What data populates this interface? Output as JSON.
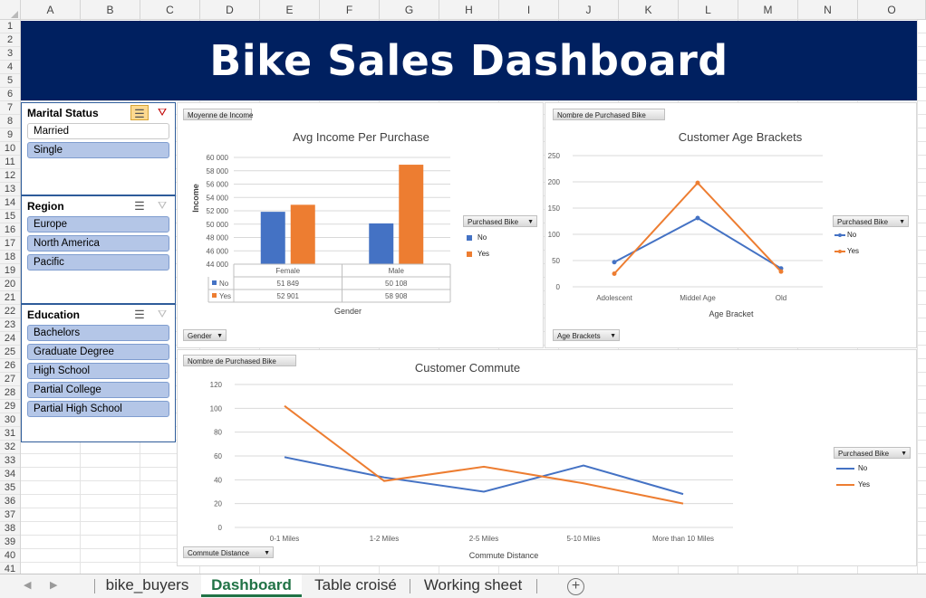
{
  "columns": [
    "A",
    "B",
    "C",
    "D",
    "E",
    "F",
    "G",
    "H",
    "I",
    "J",
    "K",
    "L",
    "M",
    "N",
    "O"
  ],
  "rows": [
    "1",
    "2",
    "3",
    "4",
    "5",
    "6",
    "7",
    "8",
    "9",
    "10",
    "11",
    "12",
    "13",
    "14",
    "15",
    "16",
    "17",
    "18",
    "19",
    "20",
    "21",
    "22",
    "23",
    "24",
    "25",
    "26",
    "27",
    "28",
    "29",
    "30",
    "31",
    "32",
    "33",
    "34",
    "35",
    "36",
    "37",
    "38",
    "39",
    "40",
    "41"
  ],
  "banner": {
    "title": "Bike Sales Dashboard",
    "bg_color": "#002060"
  },
  "slicers": [
    {
      "title": "Marital Status",
      "multi_select_active": true,
      "clear_active": true,
      "items": [
        {
          "label": "Married",
          "selected": false
        },
        {
          "label": "Single",
          "selected": true
        }
      ]
    },
    {
      "title": "Region",
      "multi_select_active": false,
      "clear_active": false,
      "items": [
        {
          "label": "Europe",
          "selected": true
        },
        {
          "label": "North America",
          "selected": true
        },
        {
          "label": "Pacific",
          "selected": true
        }
      ]
    },
    {
      "title": "Education",
      "multi_select_active": false,
      "clear_active": false,
      "items": [
        {
          "label": "Bachelors",
          "selected": true
        },
        {
          "label": "Graduate Degree",
          "selected": true
        },
        {
          "label": "High School",
          "selected": true
        },
        {
          "label": "Partial College",
          "selected": true
        },
        {
          "label": "Partial High School",
          "selected": true
        }
      ]
    }
  ],
  "colors": {
    "no": "#4472c4",
    "yes": "#ed7d31"
  },
  "chart_data": [
    {
      "type": "bar",
      "title": "Avg Income Per Purchase",
      "value_field_button": "Moyenne de Income",
      "axis_field_button": "Gender",
      "legend_field_button": "Purchased Bike",
      "xlabel": "Gender",
      "ylabel": "Income",
      "ylim": [
        44000,
        60000
      ],
      "yticks": [
        "44 000",
        "46 000",
        "48 000",
        "50 000",
        "52 000",
        "54 000",
        "56 000",
        "58 000",
        "60 000"
      ],
      "categories": [
        "Female",
        "Male"
      ],
      "series": [
        {
          "name": "No",
          "values": [
            51849,
            50108
          ],
          "labels": [
            "51 849",
            "50 108"
          ]
        },
        {
          "name": "Yes",
          "values": [
            52901,
            58908
          ],
          "labels": [
            "52 901",
            "58 908"
          ]
        }
      ],
      "data_table": true,
      "legend_placement": "right"
    },
    {
      "type": "line",
      "title": "Customer Age Brackets",
      "value_field_button": "Nombre de Purchased Bike",
      "axis_field_button": "Age Brackets",
      "legend_field_button": "Purchased Bike",
      "xlabel": "Age Bracket",
      "ylabel": "",
      "ylim": [
        0,
        250
      ],
      "yticks": [
        "0",
        "50",
        "100",
        "150",
        "200",
        "250"
      ],
      "categories": [
        "Adolescent",
        "Middel Age",
        "Old"
      ],
      "series": [
        {
          "name": "No",
          "values": [
            47,
            131,
            35
          ]
        },
        {
          "name": "Yes",
          "values": [
            25,
            198,
            29
          ]
        }
      ],
      "markers": true,
      "legend_placement": "right"
    },
    {
      "type": "line",
      "title": "Customer Commute",
      "value_field_button": "Nombre de Purchased Bike",
      "axis_field_button": "Commute Distance",
      "legend_field_button": "Purchased Bike",
      "xlabel": "Commute Distance",
      "ylabel": "",
      "ylim": [
        0,
        120
      ],
      "yticks": [
        "0",
        "20",
        "40",
        "60",
        "80",
        "100",
        "120"
      ],
      "categories": [
        "0-1 Miles",
        "1-2 Miles",
        "2-5 Miles",
        "5-10 Miles",
        "More than 10 Miles"
      ],
      "series": [
        {
          "name": "No",
          "values": [
            59,
            42,
            30,
            52,
            28
          ]
        },
        {
          "name": "Yes",
          "values": [
            102,
            39,
            51,
            37,
            20
          ]
        }
      ],
      "markers": false,
      "legend_placement": "right"
    }
  ],
  "tabs": [
    {
      "label": "bike_buyers",
      "active": false
    },
    {
      "label": "Dashboard",
      "active": true
    },
    {
      "label": "Table croisé",
      "active": false
    },
    {
      "label": "Working sheet",
      "active": false
    }
  ]
}
